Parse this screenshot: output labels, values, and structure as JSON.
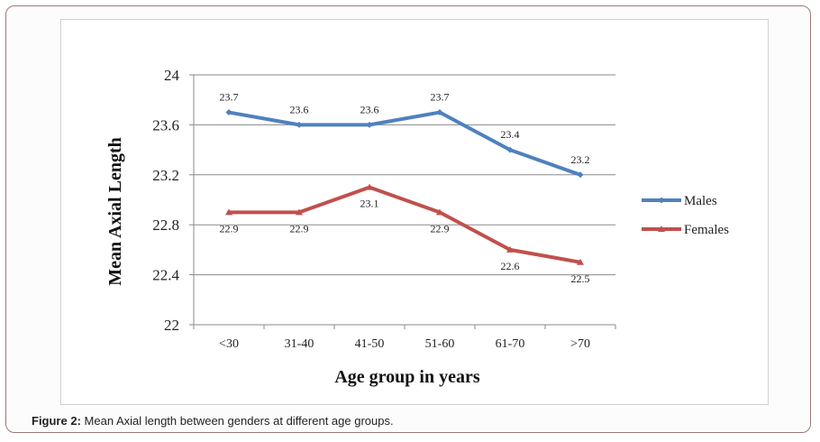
{
  "caption": {
    "label": "Figure 2:",
    "text": "Mean Axial length between genders at different age groups."
  },
  "chart_data": {
    "type": "line",
    "title": "",
    "xlabel": "Age group in years",
    "ylabel": "Mean Axial Length",
    "categories": [
      "<30",
      "31-40",
      "41-50",
      "51-60",
      "61-70",
      ">70"
    ],
    "ylim": [
      22,
      24
    ],
    "yticks": [
      "22",
      "22.4",
      "22.8",
      "23.2",
      "23.6",
      "24"
    ],
    "ytick_values": [
      22,
      22.4,
      22.8,
      23.2,
      23.6,
      24
    ],
    "grid": true,
    "legend_position": "right",
    "series": [
      {
        "name": "Males",
        "color": "#4f81bd",
        "marker": "diamond",
        "values": [
          23.7,
          23.6,
          23.6,
          23.7,
          23.4,
          23.2
        ],
        "data_labels": [
          "23.7",
          "23.6",
          "23.6",
          "23.7",
          "23.4",
          "23.2"
        ]
      },
      {
        "name": "Females",
        "color": "#c0504d",
        "marker": "triangle",
        "values": [
          22.9,
          22.9,
          23.1,
          22.9,
          22.6,
          22.5
        ],
        "data_labels": [
          "22.9",
          "22.9",
          "23.1",
          "22.9",
          "22.6",
          "22.5"
        ]
      }
    ]
  }
}
